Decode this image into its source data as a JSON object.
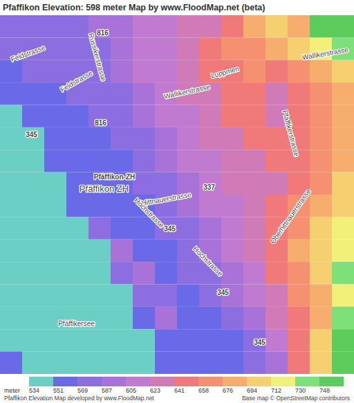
{
  "chart_data": {
    "type": "heatmap",
    "title": "Pfaffikon Elevation: 598 meter Map by www.FloodMap.net (beta)",
    "cells": [
      [
        578,
        578,
        578,
        578,
        595,
        595,
        612,
        612,
        630,
        630,
        648,
        685,
        700,
        685,
        755,
        755
      ],
      [
        578,
        578,
        578,
        578,
        578,
        595,
        612,
        612,
        630,
        648,
        665,
        665,
        685,
        700,
        720,
        738
      ],
      [
        560,
        578,
        578,
        578,
        578,
        595,
        612,
        612,
        630,
        648,
        648,
        665,
        648,
        665,
        685,
        700
      ],
      [
        560,
        560,
        560,
        578,
        578,
        578,
        595,
        612,
        630,
        630,
        648,
        648,
        630,
        648,
        665,
        685
      ],
      [
        540,
        560,
        560,
        560,
        578,
        578,
        595,
        612,
        612,
        630,
        648,
        648,
        630,
        648,
        665,
        685
      ],
      [
        540,
        540,
        560,
        560,
        560,
        578,
        578,
        595,
        612,
        630,
        630,
        648,
        648,
        648,
        665,
        685
      ],
      [
        540,
        540,
        560,
        560,
        560,
        560,
        578,
        595,
        612,
        612,
        630,
        630,
        648,
        648,
        665,
        685
      ],
      [
        540,
        540,
        540,
        560,
        560,
        560,
        578,
        578,
        595,
        612,
        630,
        630,
        630,
        648,
        665,
        700
      ],
      [
        540,
        540,
        540,
        560,
        560,
        560,
        560,
        578,
        595,
        612,
        612,
        630,
        648,
        665,
        685,
        700
      ],
      [
        540,
        540,
        540,
        540,
        578,
        560,
        560,
        578,
        578,
        595,
        612,
        630,
        648,
        665,
        700,
        720
      ],
      [
        540,
        540,
        540,
        540,
        540,
        595,
        560,
        560,
        578,
        595,
        612,
        630,
        648,
        685,
        700,
        720
      ],
      [
        540,
        540,
        540,
        540,
        540,
        578,
        595,
        560,
        578,
        578,
        595,
        612,
        648,
        665,
        700,
        738
      ],
      [
        540,
        540,
        540,
        540,
        540,
        540,
        578,
        578,
        560,
        578,
        595,
        612,
        630,
        665,
        685,
        720
      ],
      [
        540,
        540,
        540,
        540,
        540,
        540,
        560,
        595,
        560,
        560,
        578,
        595,
        630,
        648,
        685,
        738
      ],
      [
        540,
        540,
        540,
        540,
        540,
        540,
        540,
        560,
        560,
        560,
        560,
        578,
        612,
        648,
        700,
        755
      ],
      [
        560,
        540,
        540,
        540,
        540,
        540,
        540,
        560,
        560,
        560,
        560,
        578,
        595,
        648,
        700,
        755
      ]
    ],
    "color_bar": {
      "label": "meter",
      "ticks": [
        534,
        551,
        569,
        587,
        605,
        623,
        641,
        658,
        676,
        694,
        712,
        730,
        748
      ],
      "colors": [
        "#6ccfc6",
        "#6a6ae8",
        "#8d6ee0",
        "#a872d8",
        "#c07ad0",
        "#d07ab8",
        "#f07a7a",
        "#f59070",
        "#f7ad6e",
        "#f5cf70",
        "#f2f078",
        "#7ee078",
        "#5ccc5c"
      ]
    },
    "map_labels": [
      "Feldstrasse",
      "Feldstrasse",
      "Russikerstrasse",
      "816",
      "816",
      "345",
      "Pfäffikon-ZH",
      "Pfäffikon ZH",
      "Hittnauerstrasse",
      "337",
      "Hochstrasse",
      "Hochstrasse",
      "345",
      "345",
      "345",
      "Wallikerstrasse",
      "Wallikerstrasse",
      "Luppmen",
      "Pfaffikerstrasse",
      "Oberhittnauerstrasse",
      "Pfäffikersee"
    ],
    "caption_left": "Pfaffikon Elevation Map developed by www.FloodMap.net",
    "caption_right": "Base map © OpenStreetMap contributors"
  }
}
